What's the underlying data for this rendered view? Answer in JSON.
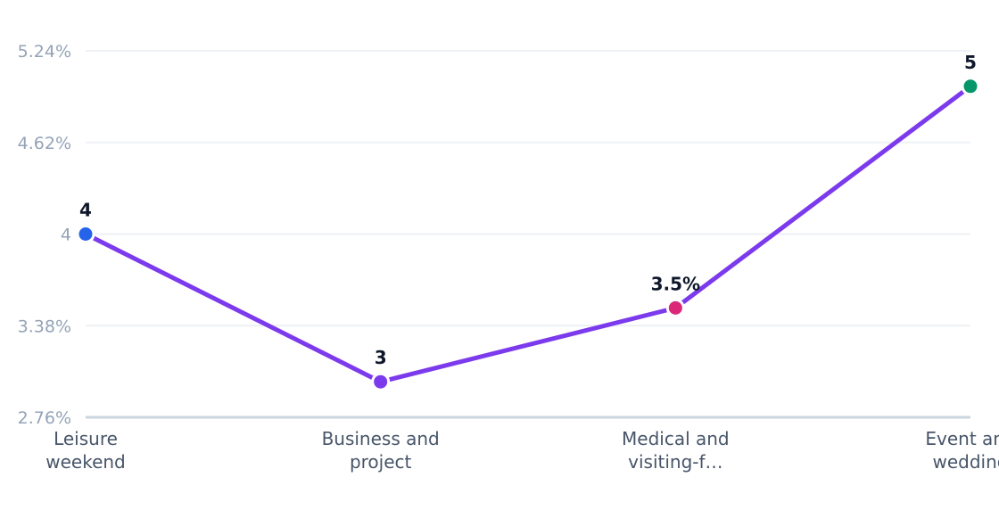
{
  "chart_data": {
    "type": "line",
    "categories": [
      [
        "Leisure",
        "weekend"
      ],
      [
        "Business and",
        "project"
      ],
      [
        "Medical and",
        "visiting-f…"
      ],
      [
        "Event and",
        "wedding"
      ]
    ],
    "series": [
      {
        "values": [
          4,
          3,
          3.5,
          5
        ],
        "data_labels": [
          "4",
          "3",
          "3.5%",
          "5"
        ],
        "point_colors": [
          "#2563eb",
          "#7c3aed",
          "#db2777",
          "#059669"
        ]
      }
    ],
    "y_ticks": [
      {
        "value": 2.76,
        "label": "2.76%"
      },
      {
        "value": 3.38,
        "label": "3.38%"
      },
      {
        "value": 4.0,
        "label": "4"
      },
      {
        "value": 4.62,
        "label": "4.62%"
      },
      {
        "value": 5.24,
        "label": "5.24%"
      }
    ],
    "ylim": [
      2.76,
      5.24
    ],
    "grid": true,
    "line_color": "#7c3aed",
    "title": "",
    "xlabel": "",
    "ylabel": ""
  }
}
